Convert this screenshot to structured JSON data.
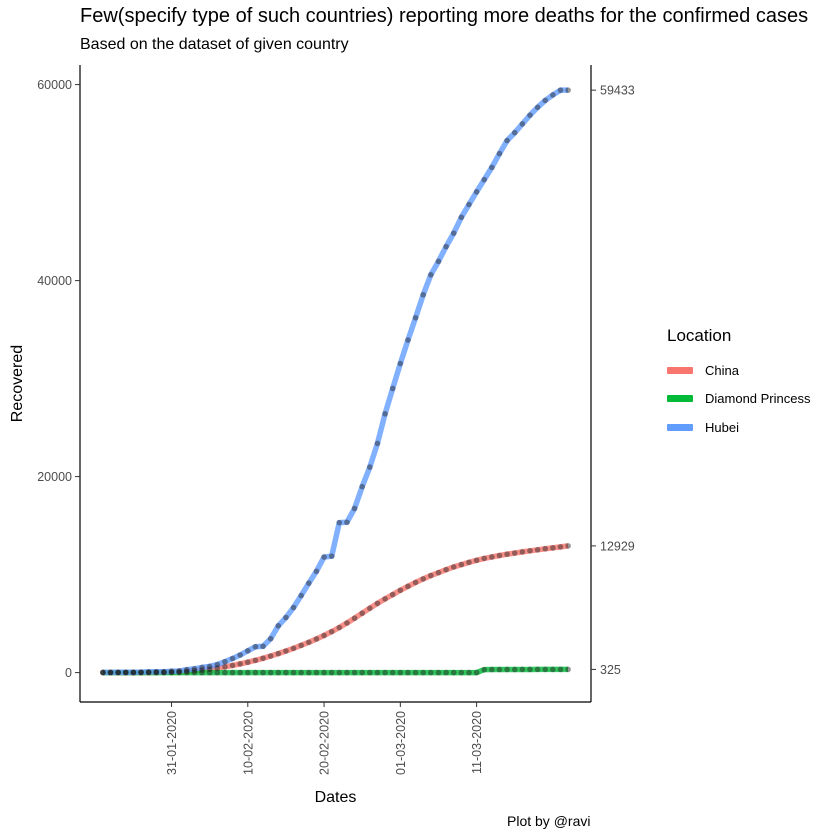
{
  "chart_data": {
    "type": "line",
    "title": "Few(specify type of such countries) reporting more deaths for the confirmed cases",
    "subtitle": "Based on the dataset of given country",
    "xlabel": "Dates",
    "ylabel": "Recovered",
    "caption": "Plot by @ravi",
    "legend_title": "Location",
    "legend_position": "right",
    "grid": false,
    "x_tick_labels": [
      "31-01-2020",
      "10-02-2020",
      "20-02-2020",
      "01-03-2020",
      "11-03-2020"
    ],
    "y_tick_labels": [
      "0",
      "20000",
      "40000",
      "60000"
    ],
    "ylim": [
      -3000,
      62000
    ],
    "xlim": [
      "2020-01-19",
      "2020-03-26"
    ],
    "end_labels": [
      "59433",
      "12929",
      "325"
    ],
    "colors": {
      "China": "#F8766D",
      "Diamond Princess": "#00BA38",
      "Hubei": "#619CFF"
    },
    "x": [
      "2020-01-22",
      "2020-01-23",
      "2020-01-24",
      "2020-01-25",
      "2020-01-26",
      "2020-01-27",
      "2020-01-28",
      "2020-01-29",
      "2020-01-30",
      "2020-01-31",
      "2020-02-01",
      "2020-02-02",
      "2020-02-03",
      "2020-02-04",
      "2020-02-05",
      "2020-02-06",
      "2020-02-07",
      "2020-02-08",
      "2020-02-09",
      "2020-02-10",
      "2020-02-11",
      "2020-02-12",
      "2020-02-13",
      "2020-02-14",
      "2020-02-15",
      "2020-02-16",
      "2020-02-17",
      "2020-02-18",
      "2020-02-19",
      "2020-02-20",
      "2020-02-21",
      "2020-02-22",
      "2020-02-23",
      "2020-02-24",
      "2020-02-25",
      "2020-02-26",
      "2020-02-27",
      "2020-02-28",
      "2020-02-29",
      "2020-03-01",
      "2020-03-02",
      "2020-03-03",
      "2020-03-04",
      "2020-03-05",
      "2020-03-06",
      "2020-03-07",
      "2020-03-08",
      "2020-03-09",
      "2020-03-10",
      "2020-03-11",
      "2020-03-12",
      "2020-03-13",
      "2020-03-14",
      "2020-03-15",
      "2020-03-16",
      "2020-03-17",
      "2020-03-18",
      "2020-03-19",
      "2020-03-20",
      "2020-03-21",
      "2020-03-22",
      "2020-03-23"
    ],
    "series": [
      {
        "name": "China",
        "values": [
          0,
          0,
          0,
          0,
          0,
          0,
          10,
          20,
          30,
          60,
          90,
          130,
          190,
          260,
          350,
          460,
          590,
          730,
          890,
          1060,
          1250,
          1460,
          1690,
          1940,
          2200,
          2480,
          2780,
          3090,
          3430,
          3790,
          4180,
          4600,
          5060,
          5550,
          6060,
          6570,
          7060,
          7520,
          7960,
          8400,
          8800,
          9200,
          9560,
          9900,
          10200,
          10500,
          10780,
          11020,
          11250,
          11460,
          11650,
          11800,
          11950,
          12080,
          12200,
          12320,
          12430,
          12530,
          12640,
          12730,
          12830,
          12929
        ]
      },
      {
        "name": "Diamond Princess",
        "values": [
          0,
          0,
          0,
          0,
          0,
          0,
          0,
          0,
          0,
          0,
          0,
          0,
          0,
          0,
          0,
          0,
          0,
          0,
          0,
          0,
          0,
          0,
          0,
          0,
          0,
          0,
          0,
          0,
          0,
          0,
          0,
          0,
          0,
          0,
          0,
          0,
          0,
          0,
          0,
          0,
          0,
          0,
          0,
          0,
          0,
          0,
          0,
          0,
          0,
          0,
          300,
          310,
          315,
          318,
          320,
          322,
          322,
          323,
          324,
          324,
          325,
          325
        ]
      },
      {
        "name": "Hubei",
        "values": [
          28,
          28,
          31,
          32,
          42,
          45,
          80,
          88,
          90,
          141,
          168,
          295,
          386,
          522,
          633,
          817,
          1115,
          1439,
          1795,
          2222,
          2639,
          2686,
          3459,
          4774,
          5623,
          6639,
          7862,
          9128,
          10337,
          11788,
          11881,
          15299,
          15343,
          16748,
          18971,
          20969,
          23383,
          26403,
          28993,
          31536,
          33934,
          36208,
          38557,
          40592,
          41966,
          43468,
          44843,
          46458,
          47765,
          49056,
          50298,
          51553,
          52960,
          54288,
          55094,
          55987,
          56883,
          57682,
          58382,
          58946,
          59433,
          59433
        ]
      }
    ]
  }
}
